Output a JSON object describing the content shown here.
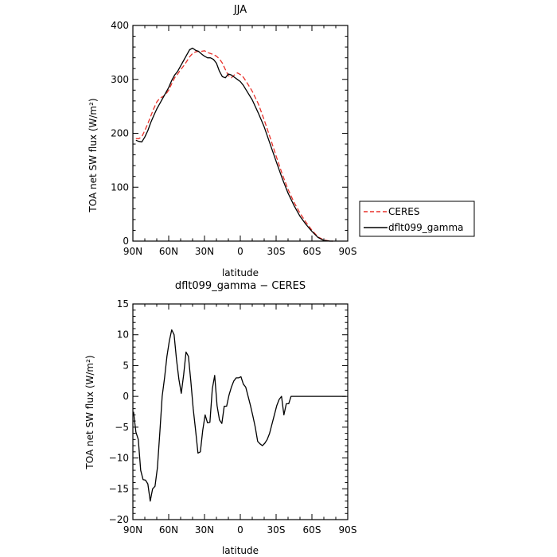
{
  "chart_data": [
    {
      "type": "line",
      "title": "JJA",
      "xlabel": "latitude",
      "ylabel": "TOA net SW flux (W/m²)",
      "xlim": [
        90,
        -90
      ],
      "ylim": [
        0,
        400
      ],
      "x_ticks": [
        90,
        60,
        30,
        0,
        -30,
        -60,
        -90
      ],
      "x_tick_labels": [
        "90N",
        "60N",
        "30N",
        "0",
        "30S",
        "60S",
        "90S"
      ],
      "y_ticks": [
        0,
        100,
        200,
        300,
        400
      ],
      "y_tick_labels": [
        "0",
        "100",
        "200",
        "300",
        "400"
      ],
      "legend": {
        "placement": "right",
        "entries": [
          "CERES",
          "dflt099_gamma"
        ]
      },
      "series": [
        {
          "name": "CERES",
          "color": "#e8312a",
          "dash": "dashed",
          "x": [
            87.5,
            85,
            82.5,
            80,
            77.5,
            75,
            72.5,
            70,
            67.5,
            65,
            62.5,
            60,
            57.5,
            55,
            52.5,
            50,
            47.5,
            45,
            42.5,
            40,
            37.5,
            35,
            32.5,
            30,
            27.5,
            25,
            22.5,
            20,
            17.5,
            15,
            12.5,
            10,
            7.5,
            5,
            2.5,
            0,
            -2.5,
            -5,
            -10,
            -15,
            -20,
            -25,
            -30,
            -35,
            -40,
            -45,
            -50,
            -55,
            -60,
            -65,
            -70,
            -75,
            -77.5
          ],
          "values": [
            190,
            190,
            194,
            205,
            218,
            232,
            246,
            258,
            265,
            268,
            272,
            280,
            292,
            303,
            310,
            318,
            325,
            333,
            342,
            348,
            351,
            352,
            352,
            353,
            350,
            348,
            346,
            343,
            338,
            330,
            318,
            307,
            303,
            308,
            312,
            309,
            304,
            296,
            278,
            255,
            225,
            192,
            158,
            125,
            96,
            72,
            52,
            35,
            20,
            8,
            2,
            0,
            0
          ]
        },
        {
          "name": "dflt099_gamma",
          "color": "#000000",
          "dash": "solid",
          "x": [
            87.5,
            85,
            82.5,
            80,
            77.5,
            75,
            72.5,
            70,
            67.5,
            65,
            62.5,
            60,
            57.5,
            55,
            52.5,
            50,
            47.5,
            45,
            42.5,
            40,
            37.5,
            35,
            32.5,
            30,
            27.5,
            25,
            22.5,
            20,
            17.5,
            15,
            12.5,
            10,
            7.5,
            5,
            2.5,
            0,
            -2.5,
            -5,
            -10,
            -15,
            -20,
            -25,
            -30,
            -35,
            -40,
            -45,
            -50,
            -55,
            -60,
            -65,
            -70,
            -75,
            -77.5
          ],
          "values": [
            187,
            185,
            184,
            193,
            205,
            220,
            233,
            245,
            255,
            265,
            275,
            285,
            298,
            308,
            315,
            325,
            335,
            345,
            355,
            358,
            354,
            352,
            347,
            343,
            340,
            340,
            337,
            330,
            315,
            305,
            303,
            310,
            308,
            304,
            300,
            296,
            289,
            280,
            262,
            238,
            212,
            180,
            148,
            117,
            89,
            66,
            46,
            31,
            18,
            7,
            1,
            0,
            0
          ]
        }
      ]
    },
    {
      "type": "line",
      "title": "dflt099_gamma − CERES",
      "xlabel": "latitude",
      "ylabel": "TOA net SW flux (W/m²)",
      "xlim": [
        90,
        -90
      ],
      "ylim": [
        -20,
        15
      ],
      "x_ticks": [
        90,
        60,
        30,
        0,
        -30,
        -60,
        -90
      ],
      "x_tick_labels": [
        "90N",
        "60N",
        "30N",
        "0",
        "30S",
        "60S",
        "90S"
      ],
      "y_ticks": [
        15,
        10,
        5,
        0,
        -5,
        -10,
        -15,
        -20
      ],
      "y_tick_labels": [
        "15",
        "10",
        "5",
        "0",
        "−5",
        "−10",
        "−15",
        "−20"
      ],
      "series": [
        {
          "color": "#000000",
          "dash": "solid",
          "x": [
            89.5,
            87.5,
            85.5,
            83.5,
            81.5,
            79.5,
            77.5,
            75.5,
            73.5,
            71.5,
            69.5,
            67.5,
            65.5,
            63.5,
            61.5,
            59.5,
            57.5,
            55.5,
            53.5,
            51.5,
            49.5,
            47.5,
            45.5,
            43.5,
            41.5,
            39.5,
            37.5,
            35.5,
            33.5,
            31.5,
            29.5,
            27.5,
            25.5,
            23.5,
            21.5,
            19.5,
            17.5,
            15.5,
            13.5,
            11.5,
            9.5,
            7.5,
            5.5,
            3.5,
            1.5,
            -0.5,
            -2.5,
            -4.5,
            -6.5,
            -8.5,
            -10.5,
            -12.5,
            -14.5,
            -16.5,
            -18.5,
            -20.5,
            -22.5,
            -24.5,
            -26.5,
            -28.5,
            -30.5,
            -32.5,
            -34.5,
            -36.5,
            -38.5,
            -40.5,
            -42.5,
            -44.5,
            -46.5,
            -48.5,
            -50.5,
            -52.5,
            -54.5,
            -56.5,
            -58.5,
            -60.5,
            -62.5,
            -64.5,
            -66.5,
            -68.5,
            -70.5,
            -72.5,
            -74.5,
            -76.5,
            -78.5,
            -80.5,
            -82.5,
            -84.5,
            -86.5,
            -88.5
          ],
          "values": [
            -2.5,
            -5.8,
            -7.0,
            -12.0,
            -13.5,
            -13.6,
            -14.2,
            -17.0,
            -15.0,
            -14.6,
            -11.6,
            -6.0,
            0.0,
            3.0,
            6.5,
            9.0,
            10.8,
            10.0,
            6.0,
            2.8,
            0.5,
            3.5,
            7.2,
            6.5,
            2.5,
            -2.0,
            -5.5,
            -9.2,
            -9.0,
            -5.5,
            -3.0,
            -4.3,
            -4.2,
            1.2,
            3.4,
            -1.5,
            -3.8,
            -4.4,
            -1.6,
            -1.6,
            0.2,
            1.5,
            2.5,
            3.0,
            3.0,
            3.2,
            2.0,
            1.5,
            0.0,
            -1.5,
            -3.2,
            -5.0,
            -7.3,
            -7.7,
            -8.0,
            -7.6,
            -7.0,
            -6.0,
            -4.5,
            -3.0,
            -1.5,
            -0.5,
            0.0,
            -3.0,
            -1.2,
            -1.2,
            0.0,
            0.0,
            0.0,
            0.0,
            0.0,
            0.0,
            0.0,
            0.0,
            0.0,
            0.0,
            0.0,
            0.0,
            0.0,
            0.0,
            0.0,
            0.0,
            0.0,
            0.0,
            0.0,
            0.0,
            0.0,
            0.0,
            0.0,
            0.0
          ]
        }
      ]
    }
  ]
}
